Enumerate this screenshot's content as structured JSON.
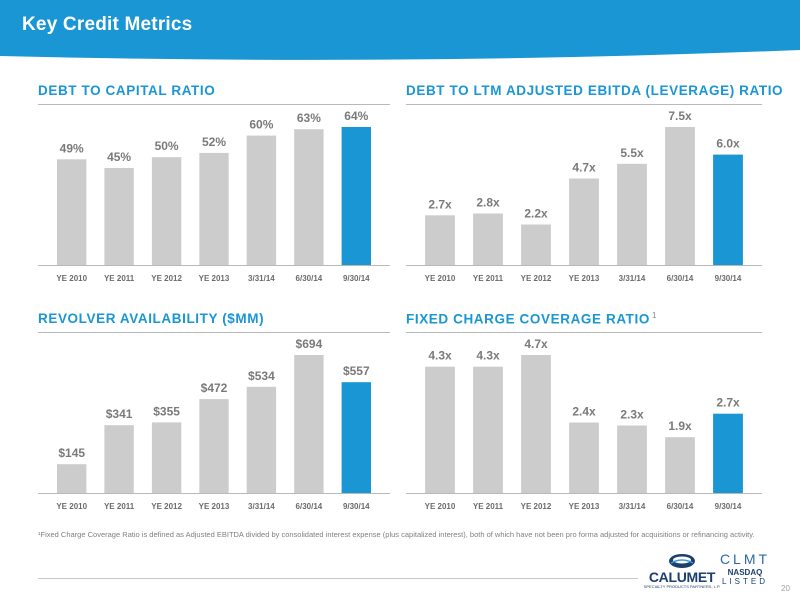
{
  "header": {
    "title": "Key Credit Metrics"
  },
  "footnote": "¹Fixed Charge Coverage Ratio is defined as Adjusted EBITDA divided by consolidated interest expense (plus capitalized interest), both of which have not been pro forma adjusted for acquisitions or refinancing activity.",
  "page_number": "20",
  "logos": {
    "company": "CALUMET",
    "company_sub": "SPECIALTY PRODUCTS PARTNERS, L.P.",
    "ticker": "CLMT",
    "exchange": "NASDAQ",
    "listed": "LISTED"
  },
  "colors": {
    "brand_blue": "#1a96d4",
    "bar_grey": "#cccccc",
    "highlight_bar": "#1a96d4"
  },
  "chart_data": [
    {
      "type": "bar",
      "title": "DEBT TO CAPITAL RATIO",
      "categories": [
        "YE 2010",
        "YE 2011",
        "YE 2012",
        "YE 2013",
        "3/31/14",
        "6/30/14",
        "9/30/14"
      ],
      "values": [
        49,
        45,
        50,
        52,
        60,
        63,
        64
      ],
      "labels": [
        "49%",
        "45%",
        "50%",
        "52%",
        "60%",
        "63%",
        "64%"
      ],
      "ylim": [
        0,
        64
      ],
      "highlight_index": 6
    },
    {
      "type": "bar",
      "title": "DEBT TO LTM ADJUSTED EBITDA (LEVERAGE) RATIO",
      "categories": [
        "YE 2010",
        "YE 2011",
        "YE 2012",
        "YE 2013",
        "3/31/14",
        "6/30/14",
        "9/30/14"
      ],
      "values": [
        2.7,
        2.8,
        2.2,
        4.7,
        5.5,
        7.5,
        6.0
      ],
      "labels": [
        "2.7x",
        "2.8x",
        "2.2x",
        "4.7x",
        "5.5x",
        "7.5x",
        "6.0x"
      ],
      "ylim": [
        0,
        7.5
      ],
      "highlight_index": 6
    },
    {
      "type": "bar",
      "title": "REVOLVER AVAILABILITY ($MM)",
      "categories": [
        "YE 2010",
        "YE 2011",
        "YE 2012",
        "YE 2013",
        "3/31/14",
        "6/30/14",
        "9/30/14"
      ],
      "values": [
        145,
        341,
        355,
        472,
        534,
        694,
        557
      ],
      "labels": [
        "$145",
        "$341",
        "$355",
        "$472",
        "$534",
        "$694",
        "$557"
      ],
      "ylim": [
        0,
        694
      ],
      "highlight_index": 6
    },
    {
      "type": "bar",
      "title": "FIXED CHARGE COVERAGE RATIO",
      "title_superscript": "1",
      "categories": [
        "YE 2010",
        "YE 2011",
        "YE 2012",
        "YE 2013",
        "3/31/14",
        "6/30/14",
        "9/30/14"
      ],
      "values": [
        4.3,
        4.3,
        4.7,
        2.4,
        2.3,
        1.9,
        2.7
      ],
      "labels": [
        "4.3x",
        "4.3x",
        "4.7x",
        "2.4x",
        "2.3x",
        "1.9x",
        "2.7x"
      ],
      "ylim": [
        0,
        4.7
      ],
      "highlight_index": 6
    }
  ]
}
